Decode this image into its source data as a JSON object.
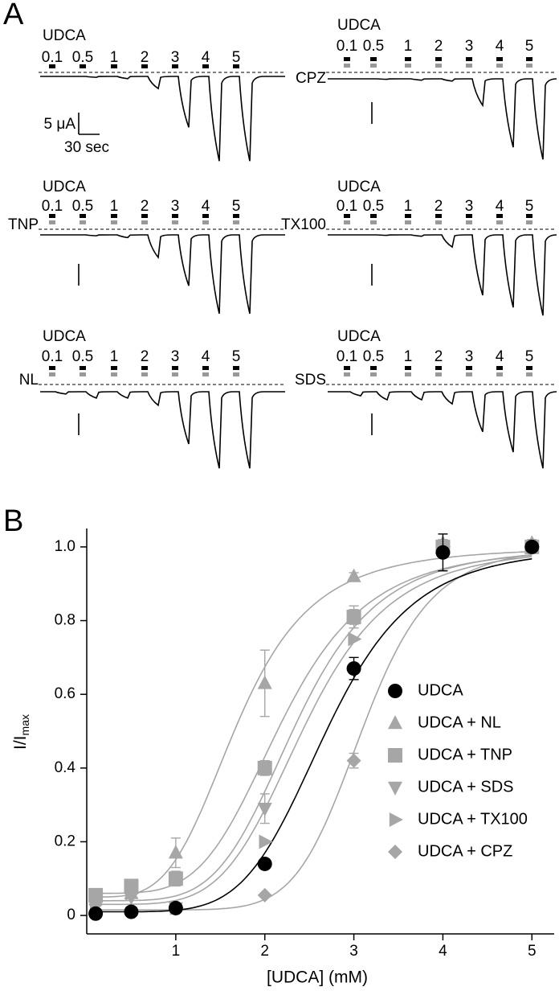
{
  "panel_a": {
    "label": "A",
    "scale_current": "5 μA",
    "scale_time": "30 sec",
    "traces": [
      {
        "agonist": "UDCA",
        "concentrations": [
          0.1,
          0.5,
          1,
          2,
          3,
          4,
          5
        ],
        "peaks_uA": [
          0,
          0.2,
          0.5,
          2.7,
          11.3,
          18.8,
          18.8
        ]
      },
      {
        "agonist": "UDCA",
        "treatment": "CPZ",
        "concentrations": [
          0.1,
          0.5,
          1,
          2,
          3,
          4,
          5
        ],
        "peaks_uA": [
          0,
          0.1,
          0.3,
          0.5,
          5.9,
          15.2,
          17.9
        ]
      },
      {
        "agonist": "UDCA",
        "treatment": "TNP",
        "concentrations": [
          0.1,
          0.5,
          1,
          2,
          3,
          4,
          5
        ],
        "peaks_uA": [
          0,
          0.2,
          0.6,
          5,
          11.3,
          17.5,
          17.5
        ]
      },
      {
        "agonist": "UDCA",
        "treatment": "TX100",
        "concentrations": [
          0.1,
          0.5,
          1,
          2,
          3,
          4,
          5
        ],
        "peaks_uA": [
          0,
          0.1,
          0.3,
          2.7,
          13.4,
          16.1,
          17.9
        ]
      },
      {
        "agonist": "UDCA",
        "treatment": "NL",
        "concentrations": [
          0.1,
          0.5,
          1,
          2,
          3,
          4,
          5
        ],
        "peaks_uA": [
          0.5,
          1.4,
          1.4,
          3,
          11.6,
          17,
          17
        ]
      },
      {
        "agonist": "UDCA",
        "treatment": "SDS",
        "concentrations": [
          0.1,
          0.5,
          1,
          2,
          3,
          4,
          5
        ],
        "peaks_uA": [
          0.9,
          1.8,
          1.8,
          2.7,
          8.9,
          13.4,
          17
        ]
      }
    ]
  },
  "chart_data": {
    "type": "scatter",
    "panel_label": "B",
    "xlabel": "[UDCA] (mM)",
    "ylabel": "I/I",
    "ylabel_sub": "max",
    "xlim": [
      0,
      5.25
    ],
    "xticks": [
      1,
      2,
      3,
      4,
      5
    ],
    "ylim": [
      -0.05,
      1.05
    ],
    "yticks": [
      0,
      0.2,
      0.4,
      0.6,
      0.8,
      {
        "value": 1,
        "label": "1.0"
      }
    ],
    "x": [
      0.1,
      0.5,
      1,
      2,
      3,
      4,
      5
    ],
    "series": [
      {
        "name": "UDCA",
        "color": "#000000",
        "marker": "circle",
        "values": [
          0.005,
          0.01,
          0.02,
          0.14,
          0.67,
          0.985,
          1.0
        ],
        "errors": [
          0,
          0,
          0,
          0.01,
          0.03,
          0.05,
          0
        ],
        "fit": {
          "bottom": 0.01,
          "top": 1,
          "ec50": 2.7,
          "n": 5.5
        }
      },
      {
        "name": "UDCA + NL",
        "color": "#a6a6a6",
        "marker": "triangle-up",
        "values": [
          0.05,
          0.06,
          0.17,
          0.63,
          0.92,
          1.01,
          1.01
        ],
        "errors": [
          0,
          0,
          0.04,
          0.09,
          0.01,
          0.01,
          0.01
        ],
        "fit": {
          "bottom": 0.05,
          "top": 1,
          "ec50": 1.7,
          "n": 4
        }
      },
      {
        "name": "UDCA + TNP",
        "color": "#a6a6a6",
        "marker": "square",
        "values": [
          0.055,
          0.08,
          0.1,
          0.4,
          0.81,
          1.0,
          1.0
        ],
        "errors": [
          0,
          0,
          0.02,
          0.02,
          0.02,
          0,
          0
        ],
        "fit": {
          "bottom": 0.06,
          "top": 1,
          "ec50": 2.2,
          "n": 4.5
        }
      },
      {
        "name": "UDCA + SDS",
        "color": "#a6a6a6",
        "marker": "triangle-down",
        "values": [
          0.04,
          0.05,
          0.02,
          0.29,
          0.81,
          1.0,
          1.0
        ],
        "errors": [
          0,
          0,
          0,
          0.04,
          0.03,
          0,
          0
        ],
        "fit": {
          "bottom": 0.04,
          "top": 1,
          "ec50": 2.35,
          "n": 5
        }
      },
      {
        "name": "UDCA + TX100",
        "color": "#a6a6a6",
        "marker": "triangle-right",
        "values": [
          0.03,
          0.06,
          0.02,
          0.2,
          0.75,
          1.0,
          1.0
        ],
        "errors": [
          0,
          0,
          0,
          0,
          0,
          0,
          0
        ],
        "fit": {
          "bottom": 0.03,
          "top": 1,
          "ec50": 2.45,
          "n": 5
        }
      },
      {
        "name": "UDCA + CPZ",
        "color": "#a6a6a6",
        "marker": "diamond",
        "values": [
          0.03,
          0.06,
          0.02,
          0.055,
          0.42,
          1.0,
          1.0
        ],
        "errors": [
          0,
          0,
          0,
          0,
          0.02,
          0,
          0
        ],
        "fit": {
          "bottom": 0.015,
          "top": 1,
          "ec50": 3.1,
          "n": 8
        }
      }
    ]
  }
}
